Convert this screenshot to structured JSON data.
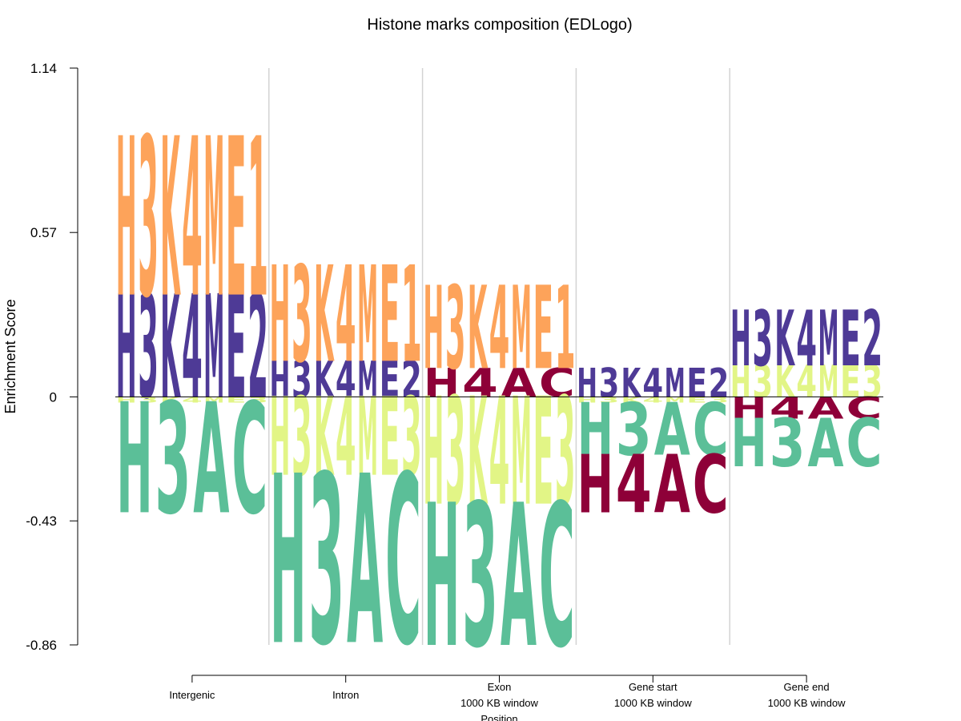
{
  "chart_data": {
    "type": "sequence-logo",
    "title": "Histone marks composition (EDLogo)",
    "ylabel": "Enrichment Score",
    "xlabel": "Position",
    "ylim": [
      -0.86,
      1.14
    ],
    "yticks": [
      "1.14",
      "0.57",
      "0",
      "-0.43",
      "-0.86"
    ],
    "ytick_values": [
      1.14,
      0.57,
      0,
      -0.43,
      -0.86
    ],
    "grid": "vertical separators between positions",
    "colors": {
      "H3K4ME1": "#FDA35A",
      "H3K4ME2": "#4E3A96",
      "H3K4ME3": "#E2F586",
      "H4AC": "#8E0038",
      "H3AC": "#5BBF98"
    },
    "positions": [
      {
        "label_lines": [
          "Intergenic"
        ],
        "positive": [
          {
            "mark": "H3K4ME2",
            "value": 0.355
          },
          {
            "mark": "H3K4ME1",
            "value": 0.545
          }
        ],
        "negative": [
          {
            "mark": "H3K4ME3",
            "value": -0.02
          },
          {
            "mark": "H3AC",
            "value": -0.38
          }
        ]
      },
      {
        "label_lines": [
          "Intron"
        ],
        "positive": [
          {
            "mark": "H3K4ME2",
            "value": 0.125
          },
          {
            "mark": "H3K4ME1",
            "value": 0.33
          }
        ],
        "negative": [
          {
            "mark": "H3K4ME3",
            "value": -0.27
          },
          {
            "mark": "H3AC",
            "value": -0.58
          }
        ]
      },
      {
        "label_lines": [
          "Exon",
          "1000 KB window",
          "Position"
        ],
        "positive": [
          {
            "mark": "H4AC",
            "value": 0.1
          },
          {
            "mark": "H3K4ME1",
            "value": 0.285
          }
        ],
        "negative": [
          {
            "mark": "H3K4ME3",
            "value": -0.37
          },
          {
            "mark": "H3AC",
            "value": -0.49
          }
        ]
      },
      {
        "label_lines": [
          "Gene start",
          "1000 KB window"
        ],
        "positive": [
          {
            "mark": "H3K4ME2",
            "value": 0.1
          }
        ],
        "negative": [
          {
            "mark": "H3K4ME3",
            "value": -0.02
          },
          {
            "mark": "H3AC",
            "value": -0.18
          },
          {
            "mark": "H4AC",
            "value": -0.2
          }
        ]
      },
      {
        "label_lines": [
          "Gene end",
          "1000 KB window"
        ],
        "positive": [
          {
            "mark": "H3K4ME3",
            "value": 0.11
          },
          {
            "mark": "H3K4ME2",
            "value": 0.19
          }
        ],
        "negative": [
          {
            "mark": "H4AC",
            "value": -0.075
          },
          {
            "mark": "H3AC",
            "value": -0.165
          }
        ]
      }
    ]
  }
}
